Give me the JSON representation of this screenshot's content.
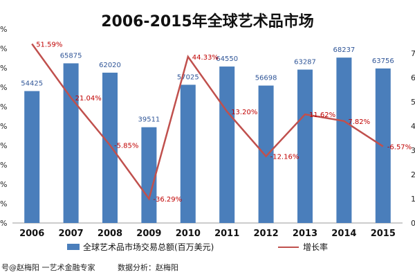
{
  "chart_data": {
    "type": "bar+line",
    "title": "2006-2015年全球艺术品市场",
    "categories": [
      "2006",
      "2007",
      "2008",
      "2009",
      "2010",
      "2011",
      "2012",
      "2013",
      "2014",
      "2015"
    ],
    "series": [
      {
        "name": "全球艺术品市场交易总额(百万美元)",
        "type": "bar",
        "axis": "left",
        "color": "#4a7ebb",
        "values": [
          54425,
          65875,
          62020,
          39511,
          57025,
          64550,
          56698,
          63287,
          68237,
          63756
        ],
        "labels": [
          "54425",
          "65875",
          "62020",
          "39511",
          "57025",
          "64550",
          "56698",
          "63287",
          "68237",
          "63756"
        ]
      },
      {
        "name": "增长率",
        "type": "line",
        "axis": "right",
        "color": "#c0504d",
        "values": [
          51.59,
          21.04,
          -5.85,
          -36.29,
          44.33,
          13.2,
          -12.16,
          11.62,
          7.82,
          -6.57
        ],
        "labels": [
          "51.59%",
          "21.04%",
          "-5.85%",
          "-36.29%",
          "44.33%",
          "13.20%",
          "-12.16%",
          "11.62%",
          "7.82%",
          "-6.57%"
        ]
      }
    ],
    "left_axis": {
      "min": 0,
      "max": 80000,
      "ticks": [
        "%",
        "%",
        "%",
        "%",
        "%",
        "%",
        "%",
        "%",
        "%",
        "%",
        "%"
      ]
    },
    "right_axis": {
      "min": -50,
      "max": 60,
      "ticks": [
        "0",
        "1",
        "2",
        "3",
        "4",
        "5",
        "6",
        "7",
        ""
      ],
      "tick_count": 9
    },
    "legend_position": "bottom",
    "grid": false
  },
  "footer": {
    "left_text": "号@赵梅阳 一艺术金融专家",
    "right_text": "数据分析：赵梅阳"
  }
}
